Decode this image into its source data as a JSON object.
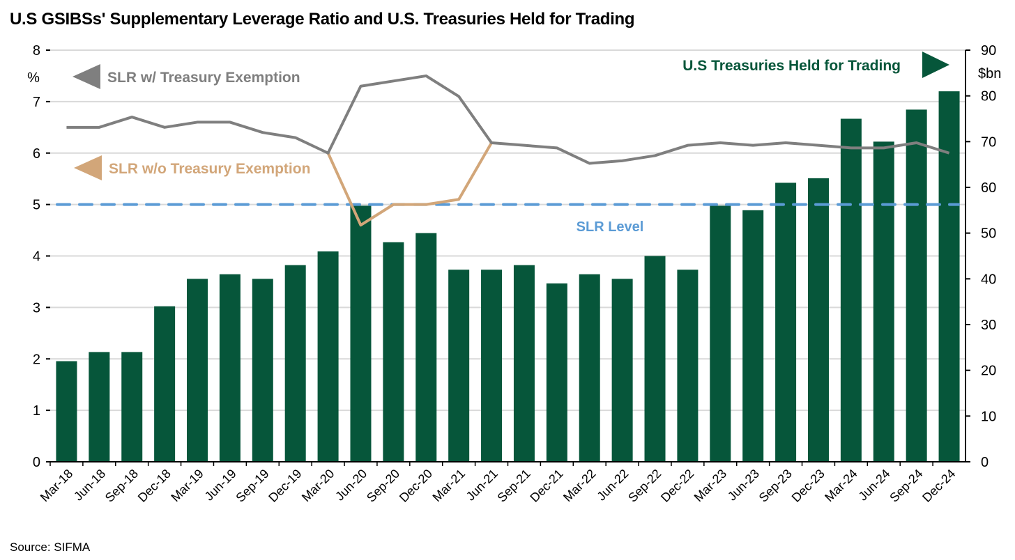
{
  "chart_data": {
    "type": "bar",
    "title": "U.S GSIBSs' Supplementary Leverage Ratio and U.S. Treasuries Held for Trading",
    "source": "Source: SIFMA",
    "categories": [
      "Mar-18",
      "Jun-18",
      "Sep-18",
      "Dec-18",
      "Mar-19",
      "Jun-19",
      "Sep-19",
      "Dec-19",
      "Mar-20",
      "Jun-20",
      "Sep-20",
      "Dec-20",
      "Mar-21",
      "Jun-21",
      "Sep-21",
      "Dec-21",
      "Mar-22",
      "Jun-22",
      "Sep-22",
      "Dec-22",
      "Mar-23",
      "Jun-23",
      "Sep-23",
      "Dec-23",
      "Mar-24",
      "Jun-24",
      "Sep-24",
      "Dec-24"
    ],
    "left_axis": {
      "label": "%",
      "ylim": [
        0,
        8
      ],
      "ticks": [
        "0",
        "1",
        "2",
        "3",
        "4",
        "5",
        "6",
        "7",
        "8"
      ]
    },
    "right_axis": {
      "label": "$bn",
      "ylim": [
        0,
        90
      ],
      "ticks": [
        "0",
        "10",
        "20",
        "30",
        "40",
        "50",
        "60",
        "70",
        "80",
        "90"
      ]
    },
    "grid": true,
    "series": [
      {
        "name": "U.S Treasuries Held for Trading",
        "type": "bar",
        "axis": "right",
        "color": "#06563a",
        "values": [
          22,
          24,
          24,
          34,
          40,
          41,
          40,
          43,
          46,
          56,
          48,
          50,
          42,
          42,
          43,
          39,
          41,
          40,
          45,
          42,
          56,
          55,
          61,
          62,
          75,
          70,
          77,
          81
        ]
      },
      {
        "name": "SLR w/ Treasury Exemption",
        "type": "line",
        "axis": "left",
        "color": "#7f7f7f",
        "values": [
          6.5,
          6.5,
          6.7,
          6.5,
          6.6,
          6.6,
          6.4,
          6.3,
          6.0,
          7.3,
          7.4,
          7.5,
          7.1,
          6.2,
          6.15,
          6.1,
          5.8,
          5.85,
          5.95,
          6.15,
          6.2,
          6.15,
          6.2,
          6.15,
          6.1,
          6.1,
          6.2,
          6.0
        ]
      },
      {
        "name": "SLR w/o Treasury Exemption",
        "type": "line",
        "axis": "left",
        "color": "#d2a679",
        "values": [
          null,
          null,
          null,
          null,
          null,
          null,
          null,
          null,
          6.0,
          4.6,
          5.0,
          5.0,
          5.1,
          6.2,
          null,
          null,
          null,
          null,
          null,
          null,
          null,
          null,
          null,
          null,
          null,
          null,
          null,
          null
        ]
      }
    ],
    "reference_line": {
      "name": "SLR Level",
      "value": 5,
      "axis": "left",
      "color": "#5b9bd5"
    },
    "annotations": {
      "gray_label": "SLR w/ Treasury Exemption",
      "tan_label": "SLR w/o Treasury Exemption",
      "green_label": "U.S Treasuries Held for Trading",
      "slr_label": "SLR Level"
    }
  }
}
